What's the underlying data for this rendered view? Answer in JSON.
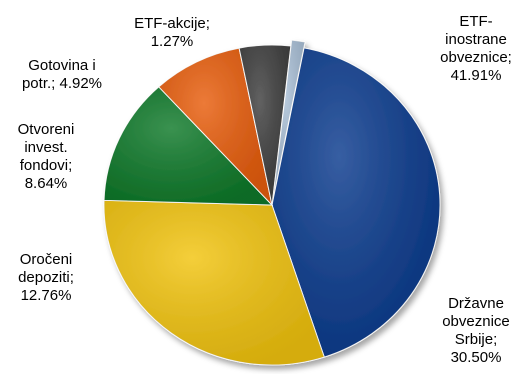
{
  "chart_data": {
    "type": "pie",
    "title": "",
    "slices": [
      {
        "label_lines": [
          "ETF-",
          "inostrane",
          "obveznice;",
          "41.91%"
        ],
        "category": "ETF-inostrane obveznice",
        "value": 41.91,
        "color": "#0b3b8e"
      },
      {
        "label_lines": [
          "Državne",
          "obveznice",
          "Srbije;",
          "30.50%"
        ],
        "category": "Državne obveznice Srbije",
        "value": 30.5,
        "color": "#f2c40f"
      },
      {
        "label_lines": [
          "Oročeni",
          "depoziti;",
          "12.76%"
        ],
        "category": "Oročeni depoziti",
        "value": 12.76,
        "color": "#0f7a2a"
      },
      {
        "label_lines": [
          "Otvoreni",
          "invest.",
          "fondovi;",
          "8.64%"
        ],
        "category": "Otvoreni invest. fondovi",
        "value": 8.64,
        "color": "#e85d0c"
      },
      {
        "label_lines": [
          "Gotovina i",
          "potr.; 4.92%"
        ],
        "category": "Gotovina i potr.",
        "value": 4.92,
        "color": "#3f3f3f"
      },
      {
        "label_lines": [
          "ETF-akcije;",
          "1.27%"
        ],
        "category": "ETF-akcije",
        "value": 1.27,
        "color": "#a9bfd6"
      }
    ]
  }
}
